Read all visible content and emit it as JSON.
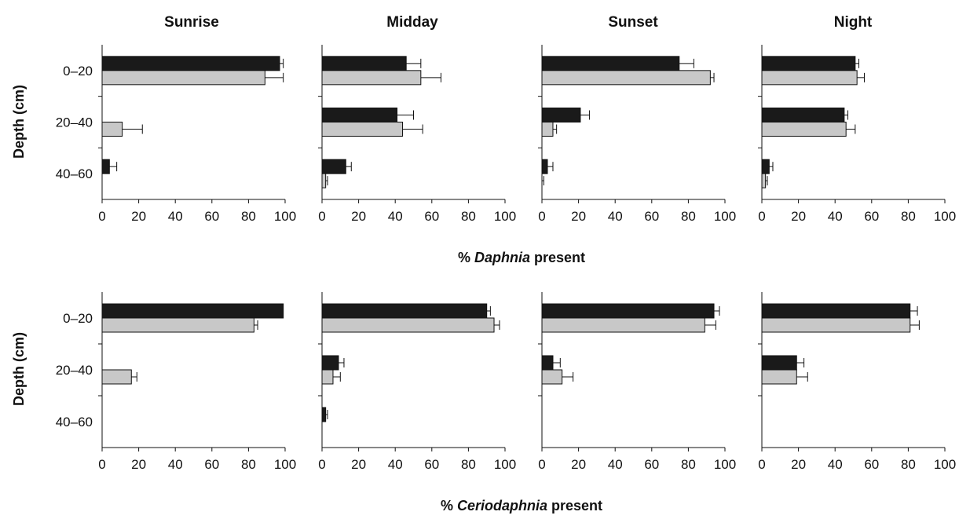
{
  "figure": {
    "column_titles": [
      "Sunrise",
      "Midday",
      "Sunset",
      "Night"
    ],
    "ylabel": "Depth (cm)",
    "xlabel_top": {
      "prefix": "% ",
      "taxon": "Daphnia",
      "suffix": " present"
    },
    "xlabel_bottom": {
      "prefix": "% ",
      "taxon": "Ceriodaphnia",
      "suffix": " present"
    },
    "depth_labels": [
      "0–20",
      "20–40",
      "40–60"
    ],
    "x_ticks": [
      "0",
      "20",
      "40",
      "60",
      "80",
      "100"
    ]
  },
  "colors": {
    "dark_series": "#1a1a1a",
    "light_series": "#c8c8c8",
    "outline": "#111111",
    "axis": "#111111"
  },
  "chart_data": [
    {
      "type": "bar",
      "orientation": "horizontal",
      "title": "Sunrise",
      "organism": "Daphnia",
      "xlim": [
        0,
        100
      ],
      "categories": [
        "0–20",
        "20–40",
        "40–60"
      ],
      "xlabel": "% Daphnia present",
      "ylabel": "Depth (cm)",
      "series": [
        {
          "color": "dark",
          "values": [
            97,
            0,
            4
          ],
          "errors": [
            2,
            0,
            4
          ]
        },
        {
          "color": "light",
          "values": [
            89,
            11,
            0
          ],
          "errors": [
            10,
            11,
            0
          ]
        }
      ]
    },
    {
      "type": "bar",
      "orientation": "horizontal",
      "title": "Midday",
      "organism": "Daphnia",
      "xlim": [
        0,
        100
      ],
      "categories": [
        "0–20",
        "20–40",
        "40–60"
      ],
      "xlabel": "% Daphnia present",
      "ylabel": "Depth (cm)",
      "series": [
        {
          "color": "dark",
          "values": [
            46,
            41,
            13
          ],
          "errors": [
            8,
            9,
            3
          ]
        },
        {
          "color": "light",
          "values": [
            54,
            44,
            2
          ],
          "errors": [
            11,
            11,
            1
          ]
        }
      ]
    },
    {
      "type": "bar",
      "orientation": "horizontal",
      "title": "Sunset",
      "organism": "Daphnia",
      "xlim": [
        0,
        100
      ],
      "categories": [
        "0–20",
        "20–40",
        "40–60"
      ],
      "xlabel": "% Daphnia present",
      "ylabel": "Depth (cm)",
      "series": [
        {
          "color": "dark",
          "values": [
            75,
            21,
            3
          ],
          "errors": [
            8,
            5,
            3
          ]
        },
        {
          "color": "light",
          "values": [
            92,
            6,
            0
          ],
          "errors": [
            2,
            2,
            1
          ]
        }
      ]
    },
    {
      "type": "bar",
      "orientation": "horizontal",
      "title": "Night",
      "organism": "Daphnia",
      "xlim": [
        0,
        100
      ],
      "categories": [
        "0–20",
        "20–40",
        "40–60"
      ],
      "xlabel": "% Daphnia present",
      "ylabel": "Depth (cm)",
      "series": [
        {
          "color": "dark",
          "values": [
            51,
            45,
            4
          ],
          "errors": [
            2,
            2,
            2
          ]
        },
        {
          "color": "light",
          "values": [
            52,
            46,
            2
          ],
          "errors": [
            4,
            5,
            1
          ]
        }
      ]
    },
    {
      "type": "bar",
      "orientation": "horizontal",
      "title": "Sunrise",
      "organism": "Ceriodaphnia",
      "xlim": [
        0,
        100
      ],
      "categories": [
        "0–20",
        "20–40",
        "40–60"
      ],
      "xlabel": "% Ceriodaphnia present",
      "ylabel": "Depth (cm)",
      "series": [
        {
          "color": "dark",
          "values": [
            99,
            0,
            0
          ],
          "errors": [
            0,
            0,
            0
          ]
        },
        {
          "color": "light",
          "values": [
            83,
            16,
            0
          ],
          "errors": [
            2,
            3,
            0
          ]
        }
      ]
    },
    {
      "type": "bar",
      "orientation": "horizontal",
      "title": "Midday",
      "organism": "Ceriodaphnia",
      "xlim": [
        0,
        100
      ],
      "categories": [
        "0–20",
        "20–40",
        "40–60"
      ],
      "xlabel": "% Ceriodaphnia present",
      "ylabel": "Depth (cm)",
      "series": [
        {
          "color": "dark",
          "values": [
            90,
            9,
            2
          ],
          "errors": [
            2,
            3,
            1
          ]
        },
        {
          "color": "light",
          "values": [
            94,
            6,
            0
          ],
          "errors": [
            3,
            4,
            0
          ]
        }
      ]
    },
    {
      "type": "bar",
      "orientation": "horizontal",
      "title": "Sunset",
      "organism": "Ceriodaphnia",
      "xlim": [
        0,
        100
      ],
      "categories": [
        "0–20",
        "20–40",
        "40–60"
      ],
      "xlabel": "% Ceriodaphnia present",
      "ylabel": "Depth (cm)",
      "series": [
        {
          "color": "dark",
          "values": [
            94,
            6,
            0
          ],
          "errors": [
            3,
            4,
            0
          ]
        },
        {
          "color": "light",
          "values": [
            89,
            11,
            0
          ],
          "errors": [
            6,
            6,
            0
          ]
        }
      ]
    },
    {
      "type": "bar",
      "orientation": "horizontal",
      "title": "Night",
      "organism": "Ceriodaphnia",
      "xlim": [
        0,
        100
      ],
      "categories": [
        "0–20",
        "20–40",
        "40–60"
      ],
      "xlabel": "% Ceriodaphnia present",
      "ylabel": "Depth (cm)",
      "series": [
        {
          "color": "dark",
          "values": [
            81,
            19,
            0
          ],
          "errors": [
            4,
            4,
            0
          ]
        },
        {
          "color": "light",
          "values": [
            81,
            19,
            0
          ],
          "errors": [
            5,
            6,
            0
          ]
        }
      ]
    }
  ]
}
